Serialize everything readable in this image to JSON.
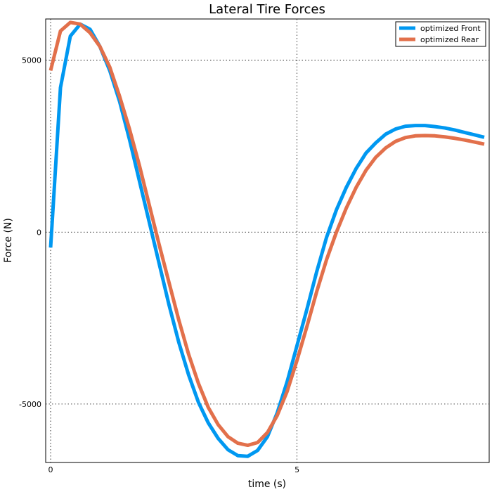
{
  "chart_data": {
    "type": "line",
    "title": "Lateral Tire Forces",
    "xlabel": "time (s)",
    "ylabel": "Force (N)",
    "xlim": [
      -0.1,
      8.9
    ],
    "ylim": [
      -6700,
      6200
    ],
    "xticks": [
      0,
      5
    ],
    "yticks": [
      -5000,
      0,
      5000
    ],
    "grid": true,
    "legend_position": "top-right",
    "x": [
      0,
      0.2,
      0.4,
      0.6,
      0.8,
      1.0,
      1.2,
      1.4,
      1.6,
      1.8,
      2.0,
      2.2,
      2.4,
      2.6,
      2.8,
      3.0,
      3.2,
      3.4,
      3.6,
      3.8,
      4.0,
      4.2,
      4.4,
      4.6,
      4.8,
      5.0,
      5.2,
      5.4,
      5.6,
      5.8,
      6.0,
      6.2,
      6.4,
      6.6,
      6.8,
      7.0,
      7.2,
      7.4,
      7.6,
      7.8,
      8.0,
      8.2,
      8.4,
      8.6,
      8.8
    ],
    "series": [
      {
        "name": "optimized Front",
        "color": "#0098f1",
        "values": [
          -450,
          4200,
          5700,
          6050,
          5900,
          5400,
          4700,
          3800,
          2700,
          1500,
          300,
          -900,
          -2100,
          -3200,
          -4150,
          -4950,
          -5550,
          -6000,
          -6330,
          -6500,
          -6520,
          -6350,
          -5950,
          -5250,
          -4350,
          -3300,
          -2250,
          -1150,
          -150,
          650,
          1300,
          1850,
          2300,
          2600,
          2850,
          3000,
          3080,
          3100,
          3100,
          3070,
          3030,
          2970,
          2900,
          2830,
          2760
        ]
      },
      {
        "name": "optimized Rear",
        "color": "#e2704b",
        "values": [
          4700,
          5850,
          6100,
          6050,
          5800,
          5400,
          4800,
          3950,
          3000,
          1950,
          800,
          -350,
          -1450,
          -2550,
          -3550,
          -4400,
          -5100,
          -5600,
          -5950,
          -6140,
          -6200,
          -6120,
          -5830,
          -5330,
          -4630,
          -3730,
          -2750,
          -1730,
          -800,
          0,
          700,
          1300,
          1800,
          2180,
          2450,
          2640,
          2750,
          2800,
          2810,
          2800,
          2770,
          2730,
          2680,
          2620,
          2560
        ]
      }
    ]
  }
}
